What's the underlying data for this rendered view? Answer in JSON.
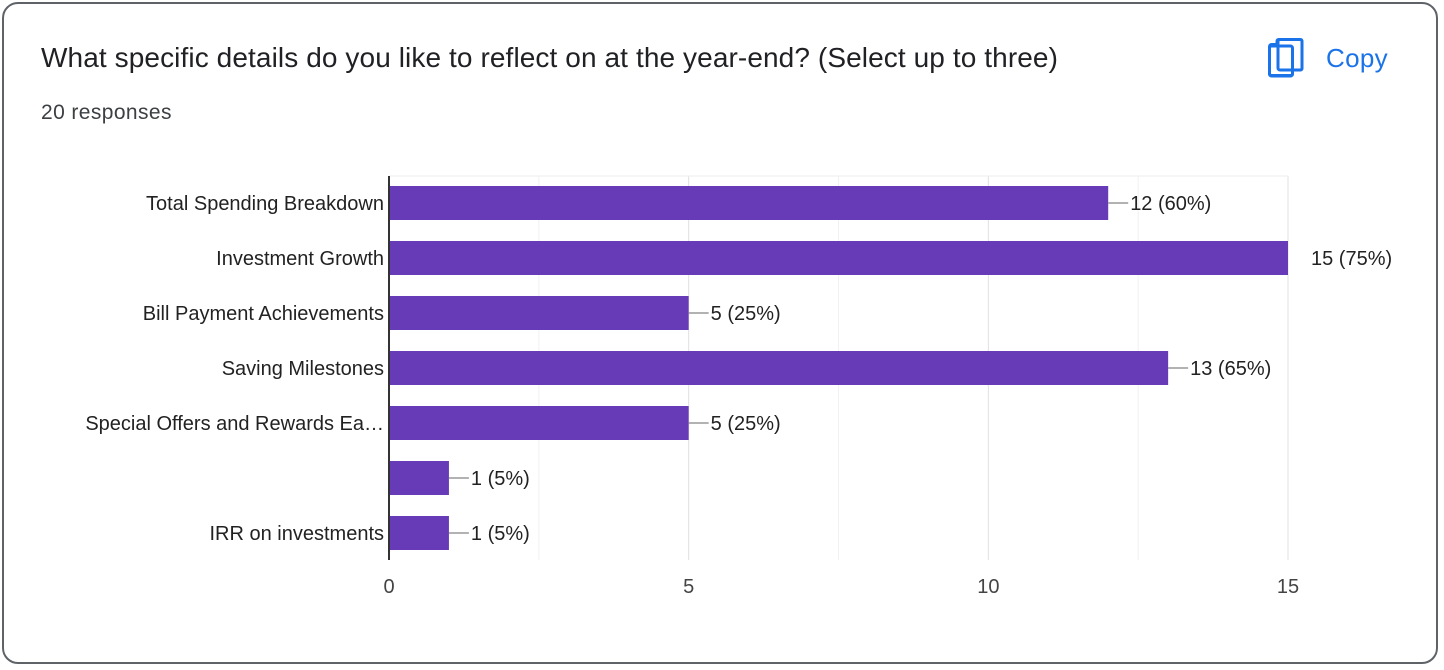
{
  "question": {
    "title": "What specific details do you like to reflect on at the year-end? (Select up to three)",
    "responses": "20 responses"
  },
  "toolbar": {
    "copy_label": "Copy",
    "copy_icon": "copy-icon",
    "accent_color": "#1a73e8"
  },
  "chart_data": {
    "type": "bar",
    "orientation": "horizontal",
    "categories": [
      "Total Spending Breakdown",
      "Investment Growth",
      "Bill Payment Achievements",
      "Saving Milestones",
      "Special Offers and Rewards Ea…",
      "",
      "IRR on investments"
    ],
    "values": [
      12,
      15,
      5,
      13,
      5,
      1,
      1
    ],
    "data_labels": [
      "12 (60%)",
      "15 (75%)",
      "5 (25%)",
      "13 (65%)",
      "5 (25%)",
      "1 (5%)",
      "1 (5%)"
    ],
    "xlim": [
      0,
      15
    ],
    "xticks": [
      0,
      5,
      10,
      15
    ],
    "bar_color": "#673ab7",
    "grid": true,
    "legend": "none",
    "title": "",
    "xlabel": "",
    "ylabel": ""
  }
}
